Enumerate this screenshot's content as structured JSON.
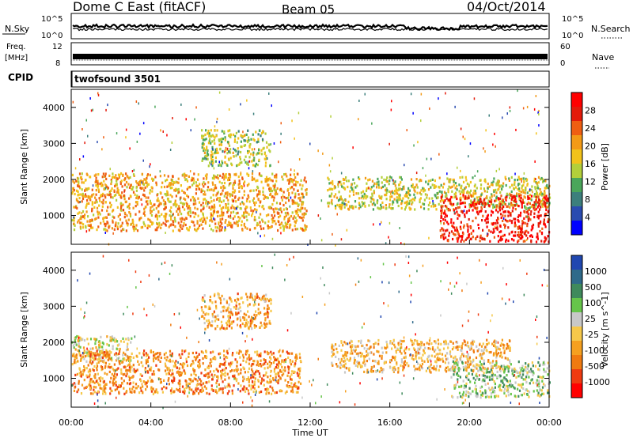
{
  "header": {
    "title": "Dome C East (fitACF)",
    "beam": "Beam 05",
    "date": "04/Oct/2014"
  },
  "status_rows": {
    "nsky_label": "N.Sky",
    "nsearch_label": "N.Search",
    "freq_label": "Freq.",
    "freq_unit": "[MHz]",
    "nave_label": "Nave",
    "cpid_label": "CPID",
    "cpid_value": "twofsound 3501",
    "left_ticks_noise": [
      "10^5",
      "10^0"
    ],
    "right_ticks_noise": [
      "10^5",
      "10^0"
    ],
    "left_ticks_freq": [
      "12",
      "8"
    ],
    "right_ticks_nave": [
      "60",
      "0"
    ]
  },
  "axes": {
    "x_label": "Time UT",
    "y_label": "Slant Range [km]",
    "x_ticks": [
      "00:00",
      "04:00",
      "08:00",
      "12:00",
      "16:00",
      "20:00",
      "00:00"
    ],
    "y_ticks": [
      "1000",
      "2000",
      "3000",
      "4000"
    ]
  },
  "power_colorbar": {
    "label": "Power [dB]",
    "ticks": [
      "4",
      "8",
      "12",
      "16",
      "20",
      "24",
      "28"
    ],
    "colors": [
      "#0000ff",
      "#2a4bb0",
      "#3c7f7c",
      "#4aa65a",
      "#b3cf3a",
      "#f2c21a",
      "#f39a16",
      "#ef5e12",
      "#e31a0a",
      "#ff0000"
    ]
  },
  "velocity_colorbar": {
    "label": "Velocity [m s^-1]",
    "ticks": [
      "1000",
      "500",
      "100",
      "25",
      "-25",
      "-100",
      "-500",
      "-1000"
    ],
    "colors": [
      "#2047b0",
      "#2f6a8a",
      "#3f8a5c",
      "#66c54a",
      "#c8c8c8",
      "#f6c84a",
      "#f5a020",
      "#f07a10",
      "#ef3a10",
      "#ff0000"
    ]
  },
  "chart_data": [
    {
      "type": "heatmap",
      "title": "Dome C East (fitACF)",
      "xlabel": "Time UT",
      "ylabel": "Slant Range [km]",
      "xlim": [
        "00:00",
        "24:00"
      ],
      "ylim": [
        200,
        4500
      ],
      "colorbar_label": "Power [dB]",
      "color_range": [
        0,
        32
      ],
      "echo_regions": [
        {
          "t_start_h": 0.0,
          "t_end_h": 11.8,
          "range_km": [
            600,
            2200
          ],
          "power_db": 20
        },
        {
          "t_start_h": 6.5,
          "t_end_h": 10.0,
          "range_km": [
            2400,
            3400
          ],
          "power_db": 14
        },
        {
          "t_start_h": 12.8,
          "t_end_h": 24.0,
          "range_km": [
            1200,
            2100
          ],
          "power_db": 16
        },
        {
          "t_start_h": 18.5,
          "t_end_h": 24.0,
          "range_km": [
            300,
            1600
          ],
          "power_db": 28
        }
      ]
    },
    {
      "type": "heatmap",
      "title": "Dome C East (fitACF)",
      "xlabel": "Time UT",
      "ylabel": "Slant Range [km]",
      "xlim": [
        "00:00",
        "24:00"
      ],
      "ylim": [
        200,
        4500
      ],
      "colorbar_label": "Velocity [m s^-1]",
      "color_range": [
        -1000,
        1000
      ],
      "echo_regions": [
        {
          "t_start_h": 0.0,
          "t_end_h": 3.0,
          "range_km": [
            1500,
            2200
          ],
          "velocity_ms": 0
        },
        {
          "t_start_h": 0.0,
          "t_end_h": 11.5,
          "range_km": [
            600,
            1800
          ],
          "velocity_ms": -400
        },
        {
          "t_start_h": 6.5,
          "t_end_h": 10.0,
          "range_km": [
            2400,
            3400
          ],
          "velocity_ms": -300
        },
        {
          "t_start_h": 13.0,
          "t_end_h": 22.0,
          "range_km": [
            1200,
            2100
          ],
          "velocity_ms": -200
        },
        {
          "t_start_h": 19.0,
          "t_end_h": 24.0,
          "range_km": [
            500,
            1500
          ],
          "velocity_ms": 200
        }
      ]
    }
  ]
}
